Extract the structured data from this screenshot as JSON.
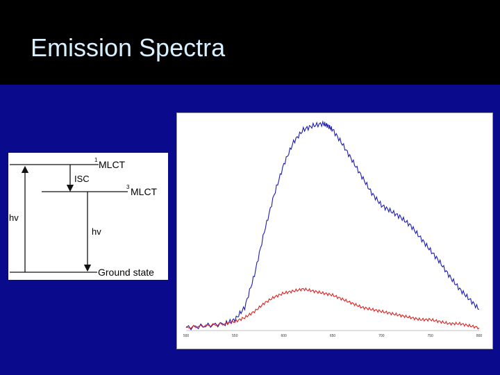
{
  "slide": {
    "title": "Emission Spectra"
  },
  "diagram": {
    "level_1mlct_sup": "1",
    "level_1mlct": "MLCT",
    "level_3mlct_sup": "3",
    "level_3mlct": "MLCT",
    "isc": "ISC",
    "hv_absorb": "hv",
    "hv_emit": "hv",
    "ground": "Ground state"
  },
  "chart_data": {
    "type": "line",
    "x_ticks": [
      "500",
      "550",
      "600",
      "650",
      "700",
      "750",
      "800"
    ],
    "xlim": [
      500,
      800
    ],
    "ylim": [
      0,
      1
    ],
    "series": [
      {
        "color": "#1c1cb4",
        "x": [
          500,
          520,
          540,
          550,
          560,
          570,
          580,
          590,
          600,
          610,
          620,
          630,
          640,
          645,
          650,
          660,
          670,
          680,
          690,
          700,
          710,
          720,
          730,
          740,
          750,
          760,
          770,
          780,
          790,
          800
        ],
        "y": [
          0.0,
          0.01,
          0.02,
          0.04,
          0.1,
          0.26,
          0.47,
          0.65,
          0.8,
          0.91,
          0.97,
          0.99,
          1.0,
          0.99,
          0.97,
          0.9,
          0.82,
          0.74,
          0.66,
          0.6,
          0.57,
          0.54,
          0.5,
          0.44,
          0.38,
          0.32,
          0.25,
          0.19,
          0.14,
          0.09
        ]
      },
      {
        "color": "#dd2222",
        "x": [
          500,
          520,
          540,
          550,
          560,
          570,
          580,
          590,
          600,
          610,
          620,
          630,
          640,
          650,
          660,
          670,
          680,
          690,
          700,
          710,
          720,
          730,
          740,
          750,
          760,
          770,
          780,
          790,
          800
        ],
        "y": [
          0.0,
          0.01,
          0.02,
          0.03,
          0.05,
          0.08,
          0.12,
          0.15,
          0.17,
          0.18,
          0.19,
          0.18,
          0.17,
          0.16,
          0.14,
          0.12,
          0.1,
          0.09,
          0.08,
          0.07,
          0.06,
          0.05,
          0.04,
          0.04,
          0.03,
          0.02,
          0.02,
          0.01,
          0.0
        ]
      }
    ]
  }
}
